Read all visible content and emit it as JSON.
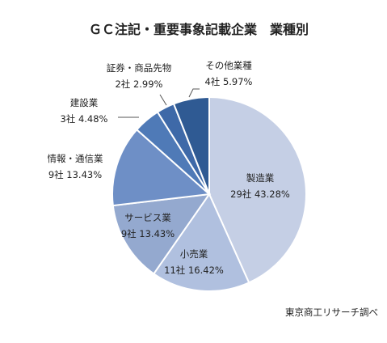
{
  "chart_data": {
    "type": "pie",
    "title": "ＧＣ注記・重要事象記載企業　業種別",
    "series": [
      {
        "name": "製造業",
        "count": 29,
        "count_label": "29社",
        "percent": 43.28,
        "percent_label": "43.28%",
        "color": "#c5cfe5"
      },
      {
        "name": "小売業",
        "count": 11,
        "count_label": "11社",
        "percent": 16.42,
        "percent_label": "16.42%",
        "color": "#b0c0df"
      },
      {
        "name": "サービス業",
        "count": 9,
        "count_label": "9社",
        "percent": 13.43,
        "percent_label": "13.43%",
        "color": "#94a9cf"
      },
      {
        "name": "情報・通信業",
        "count": 9,
        "count_label": "9社",
        "percent": 13.43,
        "percent_label": "13.43%",
        "color": "#6e8fc6"
      },
      {
        "name": "建設業",
        "count": 3,
        "count_label": "3社",
        "percent": 4.48,
        "percent_label": "4.48%",
        "color": "#4f7ab7"
      },
      {
        "name": "証券・商品先物",
        "count": 2,
        "count_label": "2社",
        "percent": 2.99,
        "percent_label": "2.99%",
        "color": "#3e69a8"
      },
      {
        "name": "その他業種",
        "count": 4,
        "count_label": "4社",
        "percent": 5.97,
        "percent_label": "5.97%",
        "color": "#2f5a93"
      }
    ],
    "source": "東京商工リサーチ調べ"
  }
}
